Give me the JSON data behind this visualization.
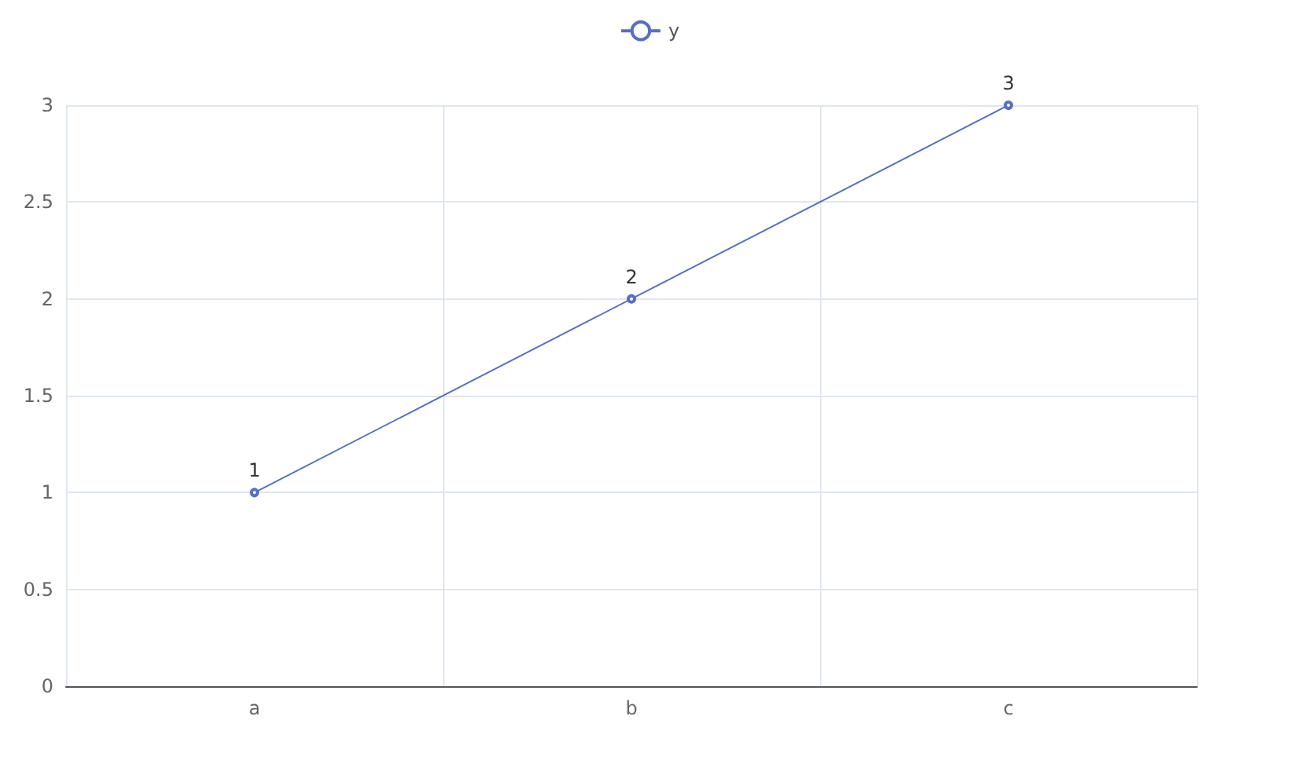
{
  "chart_data": {
    "type": "line",
    "categories": [
      "a",
      "b",
      "c"
    ],
    "series": [
      {
        "name": "y",
        "color": "#5470c6",
        "values": [
          1,
          2,
          3
        ]
      }
    ],
    "ylim": [
      0,
      3
    ],
    "yticks": [
      0,
      0.5,
      1,
      1.5,
      2,
      2.5,
      3
    ],
    "grid": true,
    "legend": "top",
    "marker": "circle",
    "data_labels": true
  }
}
